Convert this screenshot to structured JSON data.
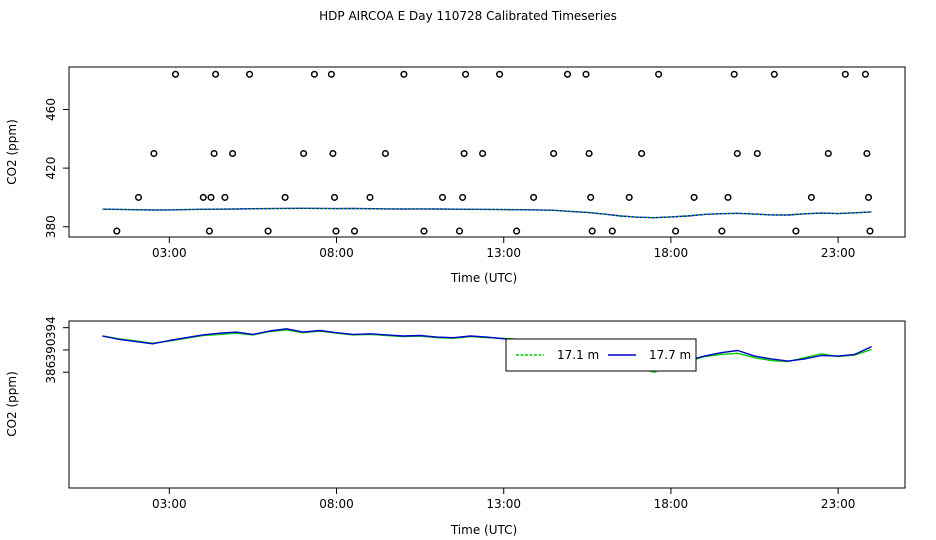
{
  "title": "HDP AIRCOA E  Day 110728  Calibrated Timeseries",
  "colors": {
    "green": "#00cc00",
    "blue": "#0000cc",
    "black": "#000000"
  },
  "chart_data": [
    {
      "type": "scatter",
      "xlabel": "Time (UTC)",
      "ylabel": "CO2 (ppm)",
      "xlim": [
        0.0,
        25.0
      ],
      "ylim": [
        373,
        489
      ],
      "x_tick_labels": [
        "03:00",
        "08:00",
        "13:00",
        "18:00",
        "23:00"
      ],
      "x_ticks": [
        3,
        8,
        13,
        18,
        23
      ],
      "y_ticks": [
        380,
        420,
        460
      ],
      "y_tick_labels": [
        "380",
        "420",
        "460"
      ],
      "points": [
        [
          1.55,
          377
        ],
        [
          2.25,
          400
        ],
        [
          2.75,
          430
        ],
        [
          3.45,
          484
        ],
        [
          4.35,
          400
        ],
        [
          4.55,
          377
        ],
        [
          4.6,
          400
        ],
        [
          4.7,
          430
        ],
        [
          4.75,
          484
        ],
        [
          5.05,
          400
        ],
        [
          5.3,
          430
        ],
        [
          5.85,
          484
        ],
        [
          6.45,
          377
        ],
        [
          7.0,
          400
        ],
        [
          7.6,
          430
        ],
        [
          7.95,
          484
        ],
        [
          8.5,
          484
        ],
        [
          8.55,
          430
        ],
        [
          8.6,
          400
        ],
        [
          8.65,
          377
        ],
        [
          9.25,
          377
        ],
        [
          9.75,
          400
        ],
        [
          10.25,
          430
        ],
        [
          10.85,
          484
        ],
        [
          11.5,
          377
        ],
        [
          12.1,
          400
        ],
        [
          12.65,
          377
        ],
        [
          12.75,
          400
        ],
        [
          12.8,
          430
        ],
        [
          12.85,
          484
        ],
        [
          13.4,
          430
        ],
        [
          13.95,
          484
        ],
        [
          14.5,
          377
        ],
        [
          15.05,
          400
        ],
        [
          15.7,
          430
        ],
        [
          16.15,
          484
        ],
        [
          16.75,
          484
        ],
        [
          16.85,
          430
        ],
        [
          16.9,
          400
        ],
        [
          16.95,
          377
        ],
        [
          17.6,
          377
        ],
        [
          18.15,
          400
        ],
        [
          18.55,
          430
        ],
        [
          19.1,
          484
        ],
        [
          19.65,
          377
        ],
        [
          20.25,
          400
        ],
        [
          21.15,
          377
        ],
        [
          21.35,
          400
        ],
        [
          21.55,
          484
        ],
        [
          21.65,
          430
        ],
        [
          22.3,
          430
        ],
        [
          22.85,
          484
        ],
        [
          23.55,
          377
        ],
        [
          24.05,
          400
        ],
        [
          24.6,
          430
        ],
        [
          25.15,
          484
        ],
        [
          25.8,
          484
        ],
        [
          25.85,
          430
        ],
        [
          25.9,
          400
        ],
        [
          25.95,
          377
        ]
      ],
      "line_series": [
        {
          "color": "green",
          "values": [
            392,
            391.8,
            391.6,
            391.4,
            391.5,
            391.7,
            391.9,
            392,
            392.1,
            392.3,
            392.4,
            392.5,
            392.6,
            392.5,
            392.4,
            392.5,
            392.3,
            392.2,
            392.1,
            392.2,
            392.1,
            392.0,
            391.9,
            391.8,
            391.7,
            391.6,
            391.5,
            391.2,
            390.5,
            389.8,
            388.6,
            387.3,
            386.5,
            386.2,
            386.7,
            387.3,
            388.4,
            388.9,
            389.2,
            388.6,
            388.1,
            388.0,
            388.8,
            389.3,
            389.0,
            389.5,
            390.1
          ]
        }
      ]
    },
    {
      "type": "line",
      "xlabel": "Time (UTC)",
      "ylabel": "CO2 (ppm)",
      "xlim": [
        0.0,
        25.0
      ],
      "ylim": [
        365.2,
        395.2
      ],
      "x_ticks": [
        3,
        8,
        13,
        18,
        23
      ],
      "x_tick_labels": [
        "03:00",
        "08:00",
        "13:00",
        "18:00",
        "23:00"
      ],
      "y_ticks": [
        386,
        390,
        394
      ],
      "y_tick_labels": [
        "386",
        "390",
        "394"
      ],
      "legend": {
        "position": "top-right-inside",
        "entries": [
          "17.1 m",
          "17.7 m"
        ]
      },
      "series": [
        {
          "name": "17.1 m",
          "color": "green",
          "x": [
            1.0,
            1.5,
            2.0,
            2.5,
            3.0,
            3.5,
            4.0,
            4.5,
            5.0,
            5.5,
            6.0,
            6.5,
            7.0,
            7.5,
            8.0,
            8.5,
            9.0,
            9.5,
            10.0,
            10.5,
            11.0,
            11.5,
            12.0,
            12.5,
            13.0,
            13.5,
            14.0,
            14.5,
            15.0,
            15.5,
            16.0,
            16.5,
            17.0,
            17.5,
            18.0,
            18.5,
            19.0,
            19.5,
            20.0,
            20.5,
            21.0,
            21.5,
            22.0,
            22.5,
            23.0,
            23.5,
            24.0
          ],
          "values": [
            392.5,
            392.0,
            391.6,
            391.2,
            391.6,
            392.1,
            392.6,
            392.8,
            393.0,
            392.7,
            393.3,
            393.6,
            393.1,
            393.4,
            393.0,
            392.7,
            392.8,
            392.6,
            392.4,
            392.5,
            392.2,
            392.1,
            392.4,
            392.2,
            392.1,
            391.9,
            391.5,
            390.7,
            389.9,
            389.4,
            388.4,
            387.1,
            386.8,
            386.0,
            387.3,
            387.9,
            388.8,
            389.2,
            389.4,
            388.6,
            388.1,
            387.9,
            388.6,
            389.3,
            388.8,
            389.1,
            390.1
          ]
        },
        {
          "name": "17.7 m",
          "color": "blue",
          "x": [
            1.0,
            1.5,
            2.0,
            2.5,
            3.0,
            3.5,
            4.0,
            4.5,
            5.0,
            5.5,
            6.0,
            6.5,
            7.0,
            7.5,
            8.0,
            8.5,
            9.0,
            9.5,
            10.0,
            10.5,
            11.0,
            11.5,
            12.0,
            12.5,
            13.0,
            13.5,
            14.0,
            14.5,
            15.0,
            15.5,
            16.0,
            16.5,
            17.0,
            17.5,
            18.0,
            18.5,
            19.0,
            19.5,
            20.0,
            20.5,
            21.0,
            21.5,
            22.0,
            22.5,
            23.0,
            23.5,
            24.0
          ],
          "values": [
            392.5,
            391.9,
            391.5,
            391.1,
            391.7,
            392.2,
            392.7,
            393.0,
            393.2,
            392.8,
            393.4,
            393.8,
            393.2,
            393.5,
            393.1,
            392.8,
            392.9,
            392.7,
            392.5,
            392.6,
            392.3,
            392.2,
            392.5,
            392.3,
            392.0,
            391.8,
            391.4,
            390.6,
            389.8,
            389.2,
            388.0,
            386.8,
            387.5,
            386.4,
            387.6,
            388.1,
            388.9,
            389.5,
            389.9,
            388.9,
            388.4,
            388.0,
            388.4,
            389.0,
            388.9,
            389.2,
            390.6
          ]
        }
      ]
    }
  ]
}
